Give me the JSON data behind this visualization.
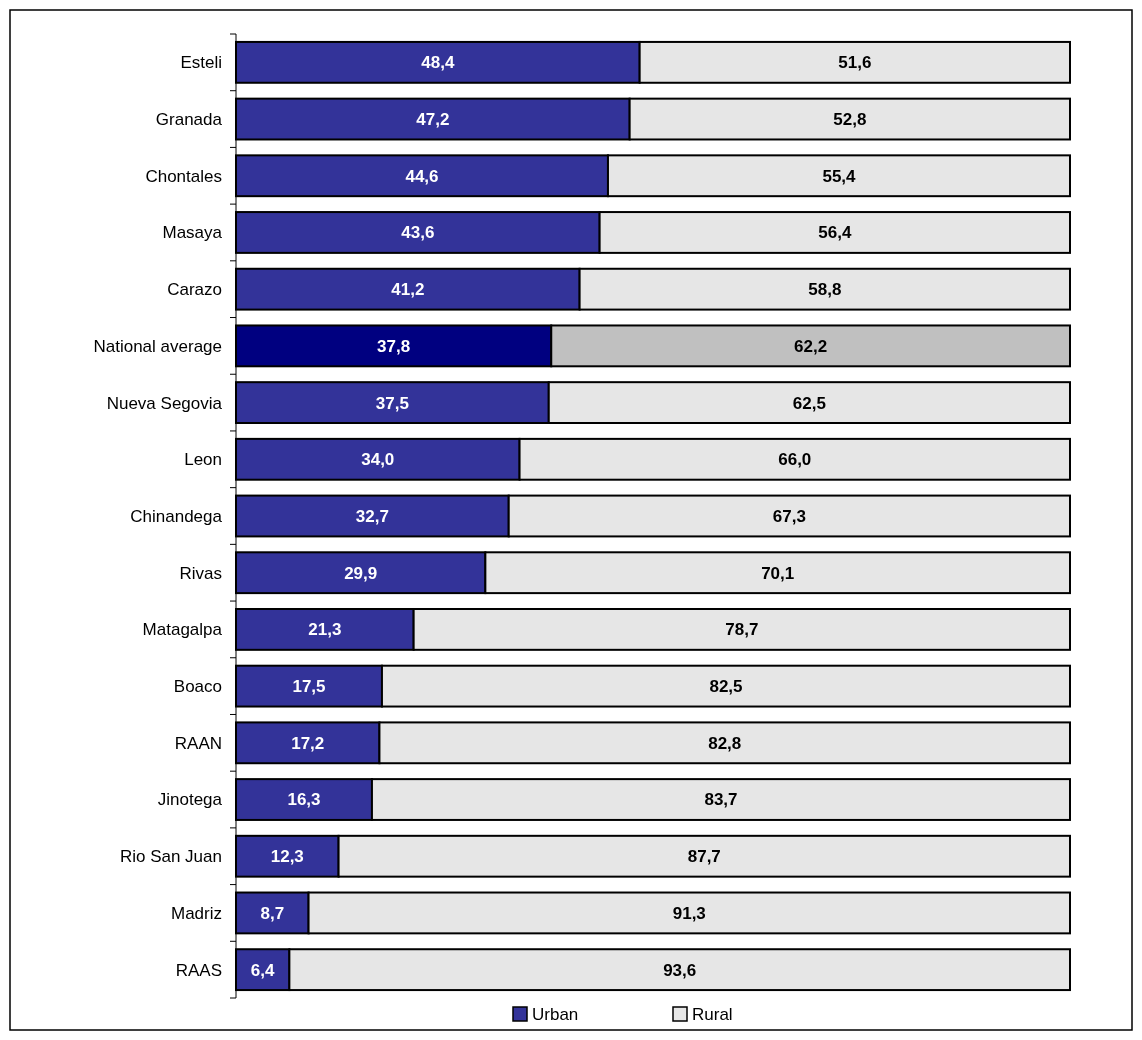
{
  "chart_data": {
    "type": "bar",
    "orientation": "horizontal",
    "stacked": true,
    "legend": "bottom",
    "tick_labels": "y",
    "categories": [
      "Esteli",
      "Granada",
      "Chontales",
      "Masaya",
      "Carazo",
      "National average",
      "Nueva Segovia",
      "Leon",
      "Chinandega",
      "Rivas",
      "Matagalpa",
      "Boaco",
      "RAAN",
      "Jinotega",
      "Rio San Juan",
      "Madriz",
      "RAAS"
    ],
    "series": [
      {
        "name": "Urban",
        "color": "#333399",
        "colors": [
          "#333399",
          "#333399",
          "#333399",
          "#333399",
          "#333399",
          "#000080",
          "#333399",
          "#333399",
          "#333399",
          "#333399",
          "#333399",
          "#333399",
          "#333399",
          "#333399",
          "#333399",
          "#333399",
          "#333399"
        ],
        "values": [
          48.4,
          47.2,
          44.6,
          43.6,
          41.2,
          37.8,
          37.5,
          34.0,
          32.7,
          29.9,
          21.3,
          17.5,
          17.2,
          16.3,
          12.3,
          8.7,
          6.4
        ],
        "value_labels": [
          "48,4",
          "47,2",
          "44,6",
          "43,6",
          "41,2",
          "37,8",
          "37,5",
          "34,0",
          "32,7",
          "29,9",
          "21,3",
          "17,5",
          "17,2",
          "16,3",
          "12,3",
          "8,7",
          "6,4"
        ]
      },
      {
        "name": "Rural",
        "color": "#e6e6e6",
        "colors": [
          "#e6e6e6",
          "#e6e6e6",
          "#e6e6e6",
          "#e6e6e6",
          "#e6e6e6",
          "#c0c0c0",
          "#e6e6e6",
          "#e6e6e6",
          "#e6e6e6",
          "#e6e6e6",
          "#e6e6e6",
          "#e6e6e6",
          "#e6e6e6",
          "#e6e6e6",
          "#e6e6e6",
          "#e6e6e6",
          "#e6e6e6"
        ],
        "values": [
          51.6,
          52.8,
          55.4,
          56.4,
          58.8,
          62.2,
          62.5,
          66.0,
          67.3,
          70.1,
          78.7,
          82.5,
          82.8,
          83.7,
          87.7,
          91.3,
          93.6
        ],
        "value_labels": [
          "51,6",
          "52,8",
          "55,4",
          "56,4",
          "58,8",
          "62,2",
          "62,5",
          "66,0",
          "67,3",
          "70,1",
          "78,7",
          "82,5",
          "82,8",
          "83,7",
          "87,7",
          "91,3",
          "93,6"
        ]
      }
    ]
  }
}
